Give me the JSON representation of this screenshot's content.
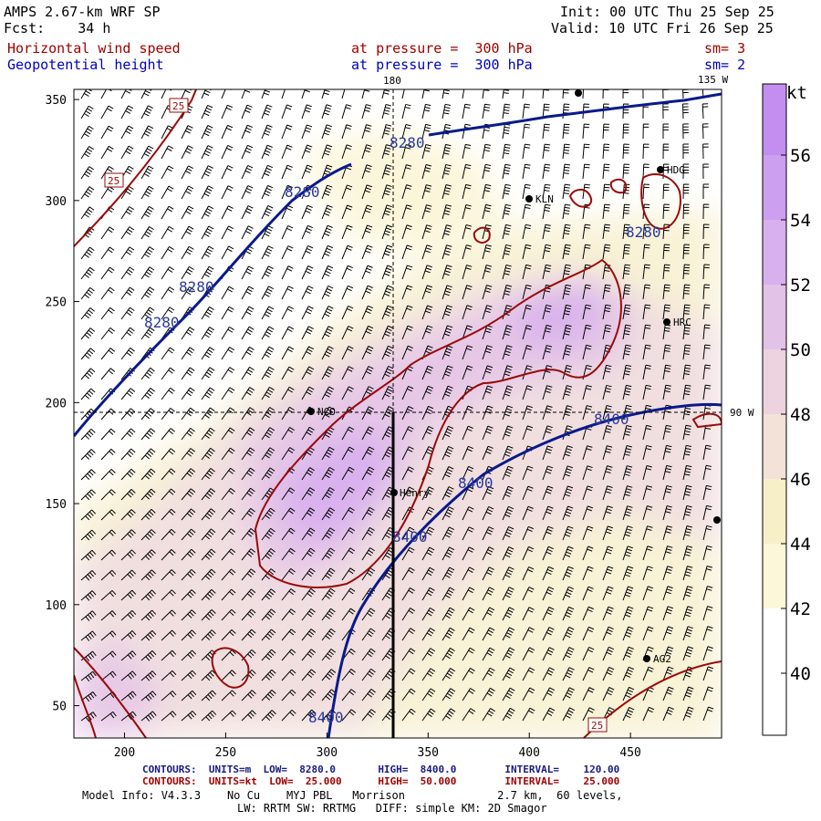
{
  "header": {
    "title": "AMPS 2.67-km WRF SP",
    "fcst_label": "Fcst:",
    "fcst_value": "34 h",
    "init": "Init: 00 UTC Thu 25 Sep 25",
    "valid": "Valid: 10 UTC Fri 26 Sep 25",
    "field1": "Horizontal wind speed",
    "field1_level": "at pressure =  300 hPa",
    "field1_sm": "sm= 3",
    "field2": "Geopotential height",
    "field2_level": "at pressure =  300 hPa",
    "field2_sm": "sm= 2"
  },
  "map_labels": {
    "lon_180": "180",
    "lon_135w": "135 W",
    "lon_90w": "90 W",
    "stations": [
      "NCO",
      "Henry",
      "KLN",
      "HDG",
      "HRC",
      "AG2"
    ]
  },
  "colorbar": {
    "unit": "kt",
    "ticks": [
      "56",
      "54",
      "52",
      "50",
      "48",
      "46",
      "44",
      "42",
      "40"
    ],
    "colors": {
      "40": "#ffffff",
      "42": "#fbf7d8",
      "44": "#f7efc8",
      "46": "#f2e2d8",
      "48": "#ecd3df",
      "50": "#e2c2e6",
      "52": "#d8b0ee",
      "54": "#cc9ff0",
      "56": "#c38ef0"
    }
  },
  "chart_data": {
    "type": "contour",
    "x_ticks": [
      "200",
      "250",
      "300",
      "350",
      "400",
      "450"
    ],
    "y_ticks": [
      "350",
      "300",
      "250",
      "200",
      "150",
      "100",
      "50"
    ],
    "xlim": [
      175,
      495
    ],
    "ylim": [
      34,
      355
    ],
    "height_contours": {
      "labels": [
        "8280",
        "8400"
      ],
      "units": "m",
      "low": 8280.0,
      "high": 8400.0,
      "interval": 120.0
    },
    "wind_contours": {
      "labels": [
        "25"
      ],
      "units": "kt",
      "low": 25.0,
      "high": 50.0,
      "interval": 25.0
    },
    "contour_colors": {
      "height": "#0a1a8c",
      "wind": "#a00000"
    }
  },
  "footer": {
    "c1_label": "CONTOURS:",
    "c1_units": "UNITS=m",
    "c1_low": "LOW=  8280.0",
    "c1_high": "HIGH=  8400.0",
    "c1_interval": "INTERVAL=    120.00",
    "c2_label": "CONTOURS:",
    "c2_units": "UNITS=kt",
    "c2_low": "LOW=  25.000",
    "c2_high": "HIGH=  50.000",
    "c2_interval": "INTERVAL=    25.000",
    "model_info": "Model Info: V4.3.3    No Cu    MYJ PBL   Morrison              2.7 km,  60 levels,",
    "model_info2": "LW: RRTM SW: RRTMG   DIFF: simple KM: 2D Smagor"
  }
}
